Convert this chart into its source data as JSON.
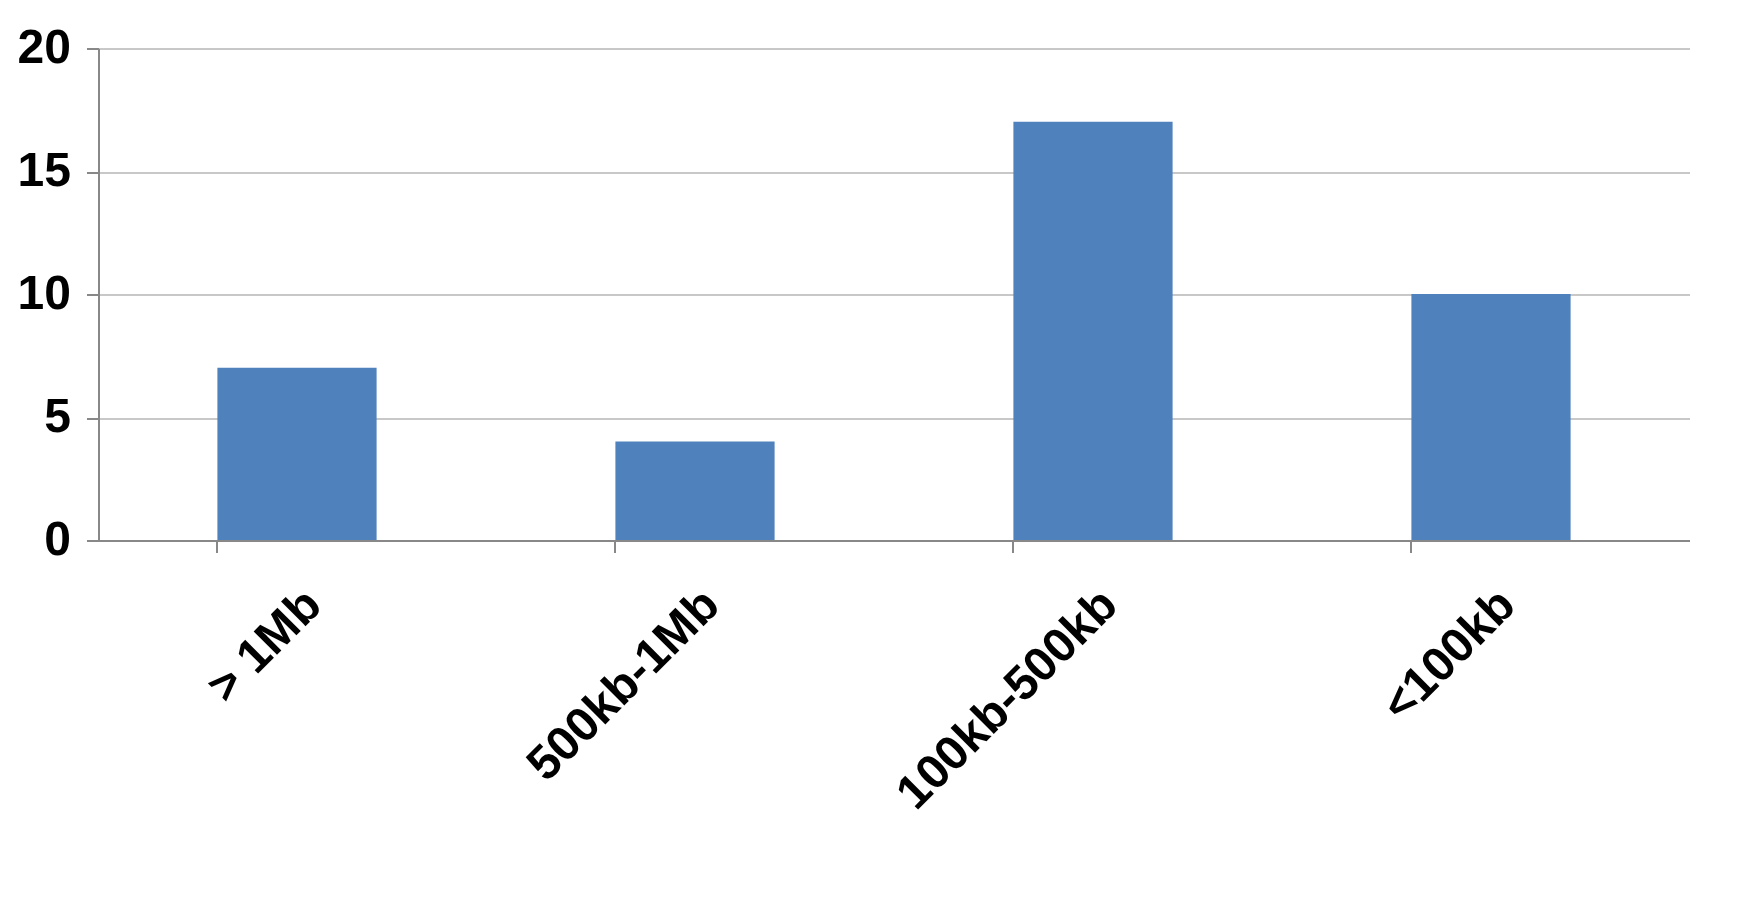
{
  "chart_data": {
    "type": "bar",
    "categories": [
      "> 1Mb",
      "500kb-1Mb",
      "100kb-500kb",
      "<100kb"
    ],
    "values": [
      7,
      4,
      17,
      10
    ],
    "color": "#4f81bd",
    "ylim": [
      0,
      20
    ],
    "yticks": [
      0,
      5,
      10,
      15,
      20
    ],
    "grid": "y"
  }
}
